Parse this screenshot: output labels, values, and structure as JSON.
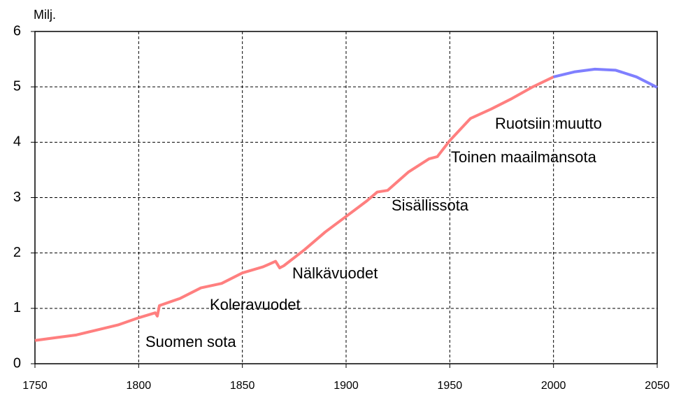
{
  "chart_data": {
    "type": "line",
    "y_label": "Milj.",
    "series": [
      {
        "color": "#ff7f7f",
        "x": [
          1750,
          1760,
          1770,
          1780,
          1790,
          1800,
          1808,
          1809,
          1810,
          1820,
          1830,
          1840,
          1850,
          1860,
          1866,
          1868,
          1870,
          1880,
          1890,
          1900,
          1910,
          1915,
          1920,
          1930,
          1940,
          1944,
          1950,
          1960,
          1970,
          1980,
          1990,
          2000
        ],
        "values": [
          0.42,
          0.47,
          0.52,
          0.61,
          0.7,
          0.83,
          0.92,
          0.86,
          1.05,
          1.18,
          1.37,
          1.45,
          1.64,
          1.75,
          1.85,
          1.73,
          1.77,
          2.06,
          2.38,
          2.66,
          2.94,
          3.1,
          3.13,
          3.46,
          3.7,
          3.74,
          4.03,
          4.43,
          4.6,
          4.79,
          5.0,
          5.18
        ]
      },
      {
        "color": "#7f7fff",
        "x": [
          2000,
          2010,
          2020,
          2030,
          2040,
          2050
        ],
        "values": [
          5.18,
          5.27,
          5.32,
          5.3,
          5.18,
          4.99
        ]
      }
    ],
    "annotations": [
      "Suomen sota",
      "Koleravuodet",
      "Nälkävuodet",
      "Sisällissota",
      "Toinen maailmansota",
      "Ruotsiin muutto"
    ],
    "xlim": [
      1750,
      2050
    ],
    "xticks": [
      1750,
      1800,
      1850,
      1900,
      1950,
      2000,
      2050
    ],
    "ylim": [
      0,
      6
    ],
    "yticks": [
      0,
      1,
      2,
      3,
      4,
      5,
      6
    ],
    "grid": true
  }
}
